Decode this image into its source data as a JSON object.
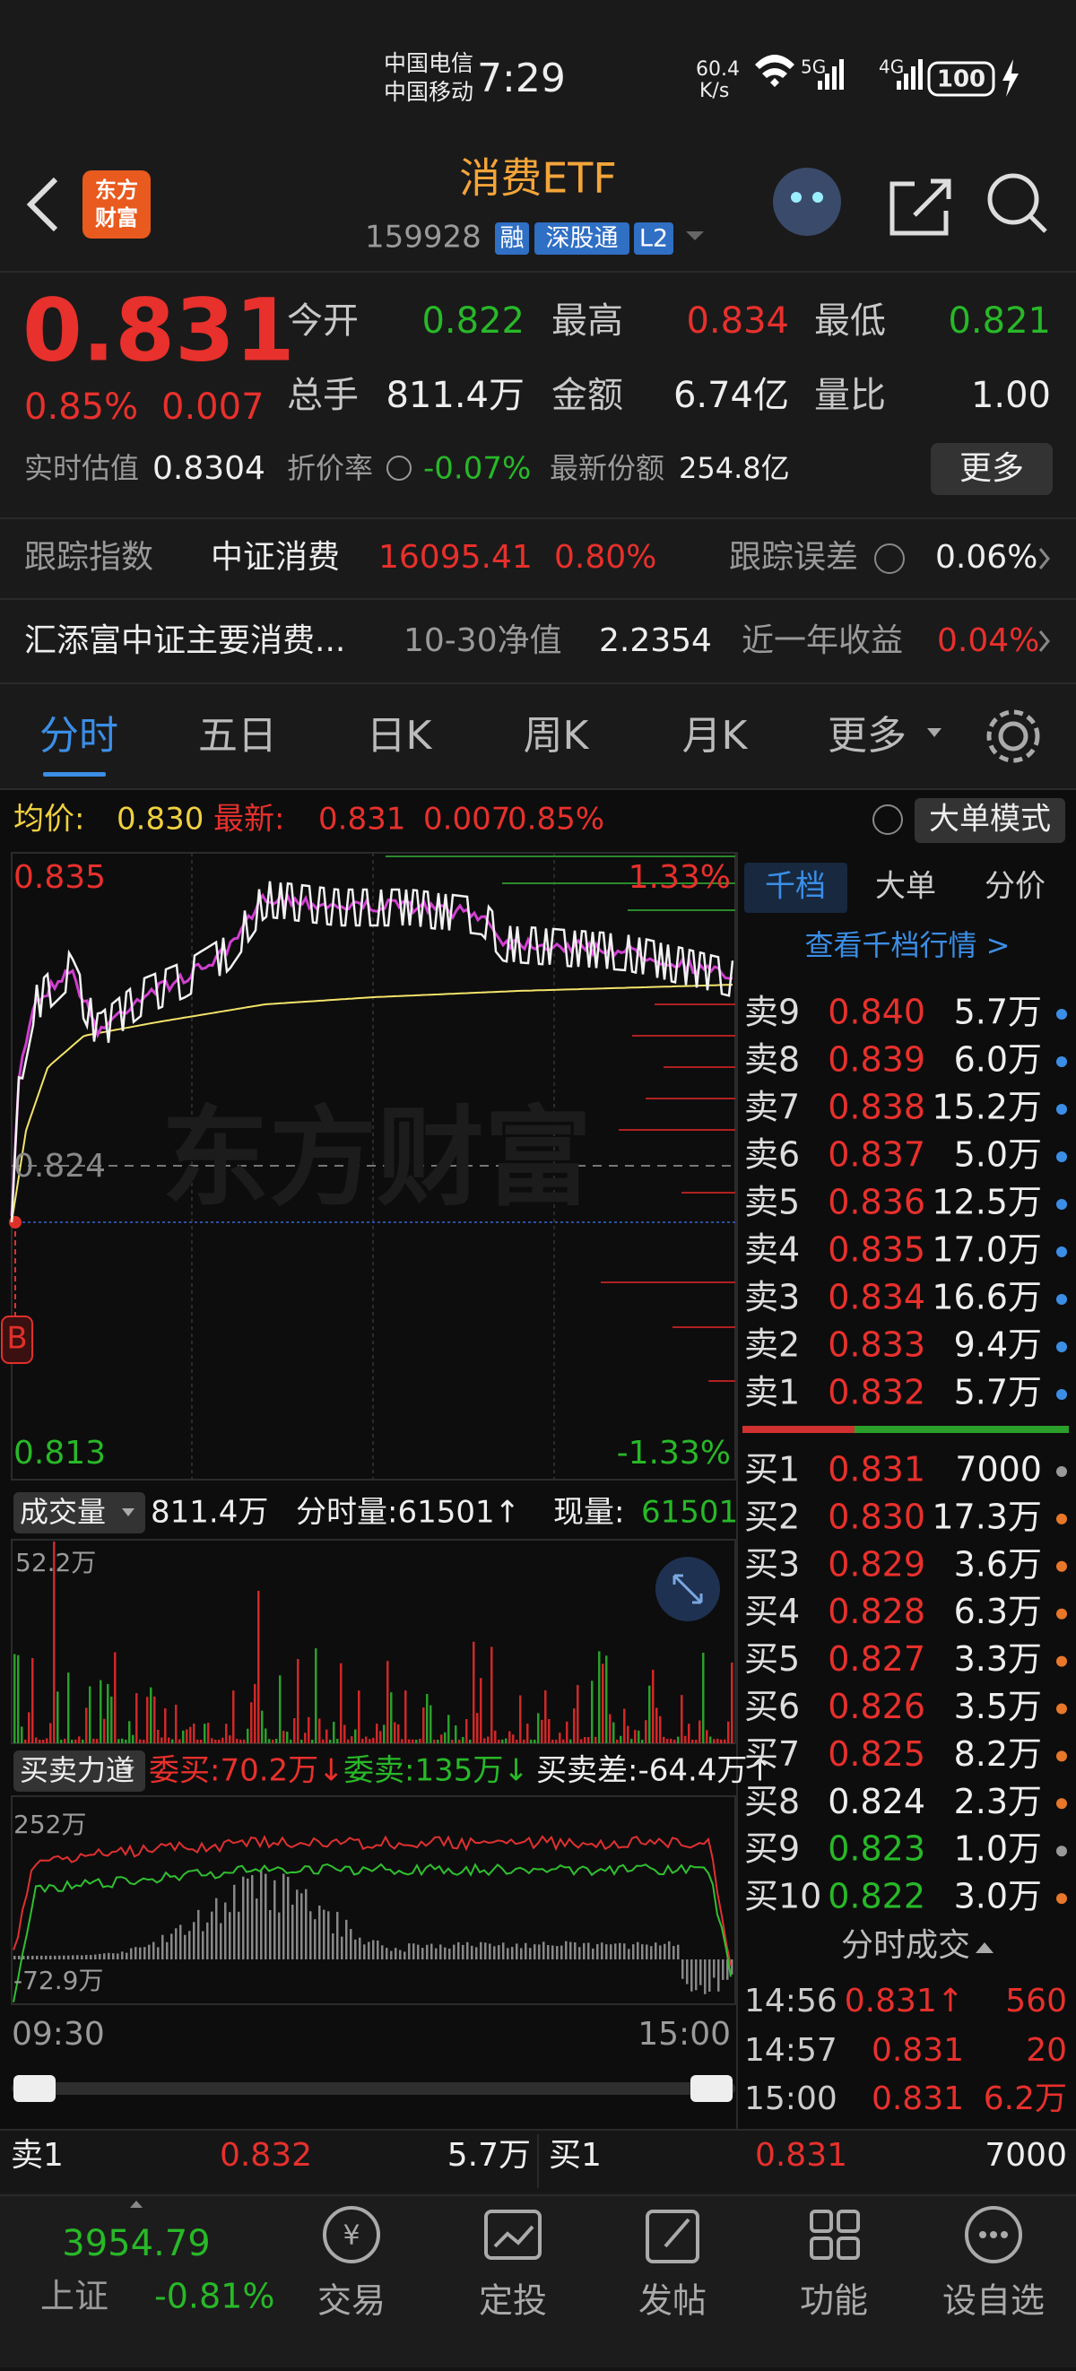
{
  "status_bar": {
    "carrier1": "中国电信",
    "carrier2": "中国移动",
    "time": "7:29",
    "speed": "60.4",
    "speed_unit": "K/s",
    "network1": "5G",
    "network2": "4G",
    "battery": "100"
  },
  "header": {
    "logo": [
      "东方",
      "财富"
    ],
    "title": "消费ETF",
    "code": "159928",
    "tags": [
      "融",
      "深股通",
      "L2"
    ]
  },
  "quote": {
    "price": "0.831",
    "change_pct": "0.85%",
    "change": "0.007",
    "fields": [
      {
        "label": "今开",
        "value": "0.822"
      },
      {
        "label": "最高",
        "value": "0.834"
      },
      {
        "label": "最低",
        "value": "0.821"
      },
      {
        "label": "总手",
        "value": "811.4万"
      },
      {
        "label": "金额",
        "value": "6.74亿"
      },
      {
        "label": "量比",
        "value": "1.00"
      }
    ],
    "iopv_label": "实时估值",
    "iopv": "0.8304",
    "premium_label": "折价率",
    "premium": "-0.07%",
    "shares_label": "最新份额",
    "shares": "254.8亿",
    "more_button": "更多"
  },
  "tracking": {
    "label": "跟踪指数",
    "index": "中证消费",
    "index_value": "16095.41",
    "index_change": "0.80%",
    "error_label": "跟踪误差",
    "error": "0.06%"
  },
  "fund": {
    "name": "汇添富中证主要消费...",
    "nav_label": "10-30净值",
    "nav": "2.2354",
    "return_label": "近一年收益",
    "return": "0.04%"
  },
  "tabs": [
    "分时",
    "五日",
    "日K",
    "周K",
    "月K",
    "更多"
  ],
  "info": {
    "avg_label": "均价:",
    "avg": "0.830",
    "last_label": "最新:",
    "last": "0.831",
    "change": "0.007",
    "change_pct": "0.85%",
    "mode_button": "大单模式"
  },
  "price_chart": {
    "high": "0.835",
    "high_pct": "1.33%",
    "mid": "0.824",
    "low": "0.813",
    "low_pct": "-1.33%",
    "watermark": "东方财富"
  },
  "volume": {
    "selector": "成交量",
    "total": "811.4万",
    "period": "分时量:61501↑",
    "current_label": "现量:",
    "current": "61501",
    "max": "52.2万"
  },
  "power": {
    "selector": "买卖力道",
    "bid": "委买:70.2万↓",
    "ask": "委卖:135万↓",
    "diff": "买卖差:-64.4万↑",
    "max": "252万",
    "min": "-72.9万"
  },
  "time_axis": [
    "09:30",
    "15:00"
  ],
  "order_book": {
    "tabs": [
      "千档",
      "大单",
      "分价"
    ],
    "link": "查看千档行情 >",
    "asks": [
      {
        "label": "卖9",
        "price": "0.840",
        "volume": "5.7万"
      },
      {
        "label": "卖8",
        "price": "0.839",
        "volume": "6.0万"
      },
      {
        "label": "卖7",
        "price": "0.838",
        "volume": "15.2万"
      },
      {
        "label": "卖6",
        "price": "0.837",
        "volume": "5.0万"
      },
      {
        "label": "卖5",
        "price": "0.836",
        "volume": "12.5万"
      },
      {
        "label": "卖4",
        "price": "0.835",
        "volume": "17.0万"
      },
      {
        "label": "卖3",
        "price": "0.834",
        "volume": "16.6万"
      },
      {
        "label": "卖2",
        "price": "0.833",
        "volume": "9.4万"
      },
      {
        "label": "卖1",
        "price": "0.832",
        "volume": "5.7万"
      }
    ],
    "bids": [
      {
        "label": "买1",
        "price": "0.831",
        "volume": "7000"
      },
      {
        "label": "买2",
        "price": "0.830",
        "volume": "17.3万"
      },
      {
        "label": "买3",
        "price": "0.829",
        "volume": "3.6万"
      },
      {
        "label": "买4",
        "price": "0.828",
        "volume": "6.3万"
      },
      {
        "label": "买5",
        "price": "0.827",
        "volume": "3.3万"
      },
      {
        "label": "买6",
        "price": "0.826",
        "volume": "3.5万"
      },
      {
        "label": "买7",
        "price": "0.825",
        "volume": "8.2万"
      },
      {
        "label": "买8",
        "price": "0.824",
        "volume": "2.3万"
      },
      {
        "label": "买9",
        "price": "0.823",
        "volume": "1.0万"
      },
      {
        "label": "买10",
        "price": "0.822",
        "volume": "3.0万"
      }
    ]
  },
  "trades": {
    "title": "分时成交",
    "rows": [
      {
        "time": "14:56",
        "price": "0.831↑",
        "volume": "560"
      },
      {
        "time": "14:57",
        "price": "0.831",
        "volume": "20"
      },
      {
        "time": "15:00",
        "price": "0.831",
        "volume": "6.2万"
      }
    ]
  },
  "bottom_quote": {
    "ask_label": "卖1",
    "ask_price": "0.832",
    "ask_volume": "5.7万",
    "bid_label": "买1",
    "bid_price": "0.831",
    "bid_volume": "7000"
  },
  "nav": {
    "index_value": "3954.79",
    "index_name": "上证",
    "index_change": "-0.81%",
    "items": [
      "交易",
      "定投",
      "发帖",
      "功能",
      "设自选"
    ]
  }
}
